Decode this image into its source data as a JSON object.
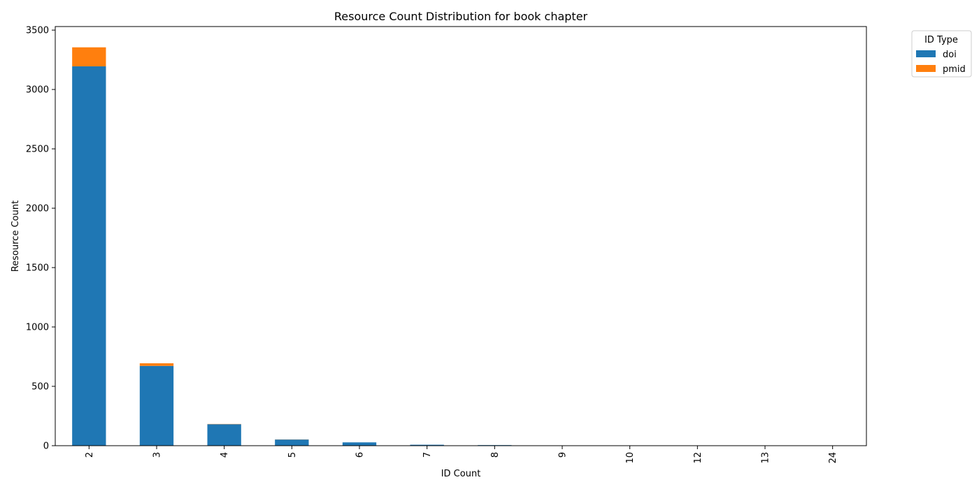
{
  "chart_data": {
    "type": "bar",
    "stacked": true,
    "title": "Resource Count Distribution for book chapter",
    "xlabel": "ID Count",
    "ylabel": "Resource Count",
    "categories": [
      "2",
      "3",
      "4",
      "5",
      "6",
      "7",
      "8",
      "9",
      "10",
      "12",
      "13",
      "24"
    ],
    "series": [
      {
        "name": "doi",
        "color": "#1f77b4",
        "values": [
          3195,
          672,
          181,
          52,
          28,
          8,
          5,
          2,
          1,
          1,
          1,
          1
        ]
      },
      {
        "name": "pmid",
        "color": "#ff7f0e",
        "values": [
          160,
          22,
          2,
          1,
          0,
          0,
          0,
          0,
          0,
          0,
          0,
          0
        ]
      }
    ],
    "ylim": [
      0,
      3530
    ],
    "yticks": [
      0,
      500,
      1000,
      1500,
      2000,
      2500,
      3000,
      3500
    ],
    "legend": {
      "title": "ID Type",
      "placement": "outside-top-right"
    },
    "grid": false
  }
}
